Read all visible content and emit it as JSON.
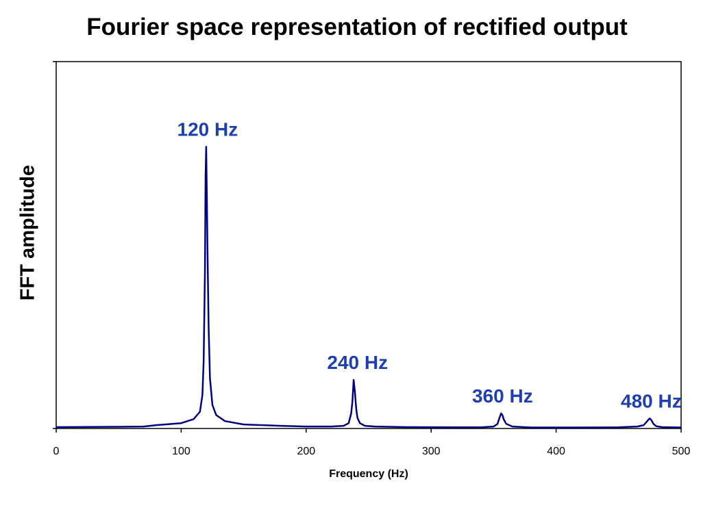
{
  "chart_data": {
    "type": "line",
    "title": "Fourier space representation of rectified output",
    "xlabel": "Frequency (Hz)",
    "ylabel": "FFT amplitude",
    "xlim": [
      0,
      500
    ],
    "ylim": [
      0,
      100
    ],
    "x_ticks": [
      0,
      100,
      200,
      300,
      400,
      500
    ],
    "y_tick_labels": false,
    "grid": false,
    "line_color": "#000080",
    "annotation_color": "#1f3fb0",
    "series": [
      {
        "x": [
          0,
          50,
          70,
          80,
          100,
          110,
          115,
          117,
          118,
          119,
          119.5,
          120,
          120.5,
          121,
          121.5,
          122,
          123,
          125,
          128,
          135,
          150,
          180,
          200,
          220,
          230,
          234,
          236,
          237,
          238,
          239,
          240,
          241,
          243,
          247,
          255,
          280,
          320,
          340,
          350,
          353,
          355,
          356,
          357,
          358,
          360,
          365,
          380,
          420,
          450,
          465,
          470,
          472,
          474,
          475,
          476,
          478,
          480,
          485,
          500
        ],
        "y": [
          0.4,
          0.5,
          0.6,
          1.0,
          1.6,
          2.8,
          5.0,
          10.0,
          20.0,
          47.0,
          75.0,
          84.0,
          70.0,
          55.0,
          42.0,
          30.0,
          15.0,
          7.0,
          4.0,
          2.2,
          1.2,
          0.8,
          0.6,
          0.6,
          0.8,
          1.6,
          4.5,
          8.0,
          14.5,
          11.0,
          6.0,
          3.2,
          1.6,
          0.8,
          0.6,
          0.4,
          0.35,
          0.35,
          0.6,
          1.3,
          3.5,
          4.5,
          4.0,
          2.8,
          1.4,
          0.6,
          0.3,
          0.3,
          0.35,
          0.6,
          1.0,
          1.8,
          2.7,
          3.0,
          2.6,
          1.3,
          0.7,
          0.4,
          0.3
        ]
      }
    ],
    "annotations": [
      {
        "text": "120 Hz",
        "x": 120,
        "y": 84
      },
      {
        "text": "240 Hz",
        "x": 240,
        "y": 14.5
      },
      {
        "text": "360 Hz",
        "x": 356,
        "y": 4.5
      },
      {
        "text": "480 Hz",
        "x": 475,
        "y": 3.0
      }
    ]
  }
}
